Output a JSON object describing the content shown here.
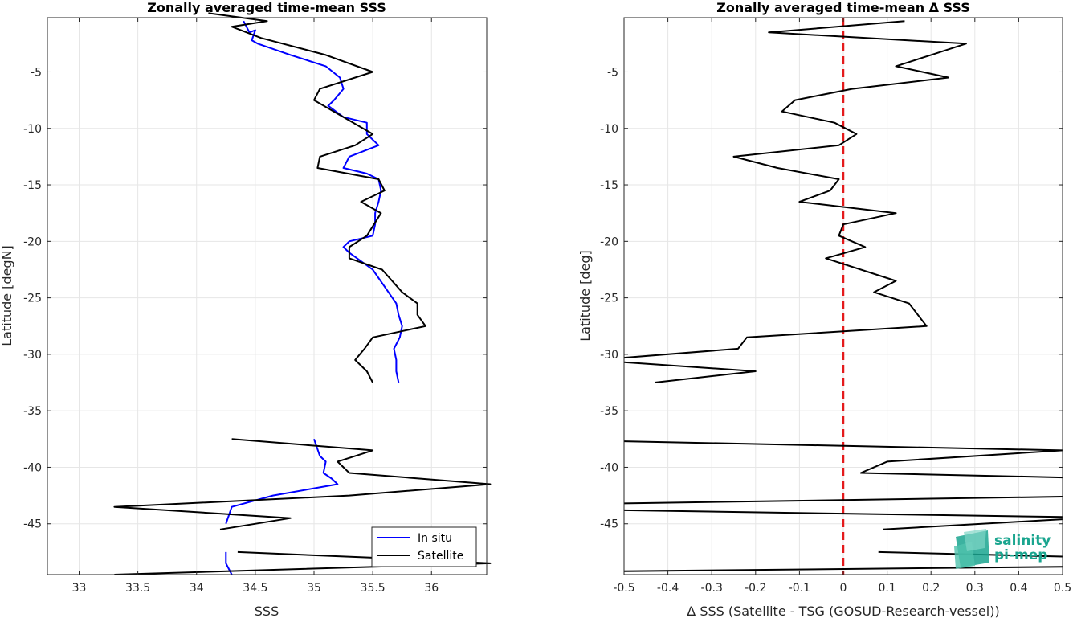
{
  "chart_data": [
    {
      "type": "line",
      "title": "Zonally averaged time-mean SSS",
      "xlabel": "SSS",
      "ylabel": "Latitude [degN]",
      "xlim": [
        32.73,
        36.47
      ],
      "ylim": [
        -49.5,
        -0.2
      ],
      "xticks": [
        33,
        33.5,
        34,
        34.5,
        35,
        35.5,
        36
      ],
      "xtick_labels": [
        "33",
        "33.5",
        "34",
        "34.5",
        "35",
        "35.5",
        "36"
      ],
      "yticks": [
        -5,
        -10,
        -15,
        -20,
        -25,
        -30,
        -35,
        -40,
        -45
      ],
      "ytick_labels": [
        "-5",
        "-10",
        "-15",
        "-20",
        "-25",
        "-30",
        "-35",
        "-40",
        "-45"
      ],
      "grid": true,
      "legend_position": "bottom-right",
      "series": [
        {
          "name": "In situ",
          "color": "#0000ff",
          "segments": [
            [
              [
                34.4,
                -0.5
              ],
              [
                34.45,
                -1.5
              ],
              [
                34.5,
                -1.3
              ],
              [
                34.47,
                -2.2
              ],
              [
                34.52,
                -2.5
              ],
              [
                34.8,
                -3.5
              ],
              [
                35.1,
                -4.5
              ],
              [
                35.22,
                -5.5
              ],
              [
                35.25,
                -6.5
              ],
              [
                35.17,
                -7.5
              ],
              [
                35.12,
                -8
              ],
              [
                35.25,
                -9
              ],
              [
                35.45,
                -9.5
              ],
              [
                35.45,
                -10.5
              ],
              [
                35.55,
                -11.5
              ],
              [
                35.3,
                -12.5
              ],
              [
                35.25,
                -13.5
              ],
              [
                35.45,
                -14
              ],
              [
                35.55,
                -14.5
              ],
              [
                35.57,
                -15.5
              ],
              [
                35.55,
                -16.5
              ],
              [
                35.52,
                -17.5
              ],
              [
                35.52,
                -18.5
              ],
              [
                35.5,
                -19.5
              ],
              [
                35.3,
                -20
              ],
              [
                35.25,
                -20.5
              ],
              [
                35.3,
                -21
              ],
              [
                35.5,
                -22.5
              ],
              [
                35.6,
                -24
              ],
              [
                35.7,
                -25.5
              ],
              [
                35.72,
                -26.5
              ],
              [
                35.75,
                -27.5
              ],
              [
                35.73,
                -28.5
              ],
              [
                35.68,
                -29.5
              ],
              [
                35.7,
                -30.5
              ],
              [
                35.7,
                -31.5
              ],
              [
                35.72,
                -32.5
              ]
            ],
            [
              [
                35.0,
                -37.5
              ],
              [
                35.05,
                -39
              ],
              [
                35.1,
                -39.5
              ],
              [
                35.08,
                -40.5
              ],
              [
                35.15,
                -41
              ],
              [
                35.2,
                -41.5
              ],
              [
                34.65,
                -42.5
              ],
              [
                34.3,
                -43.5
              ],
              [
                34.25,
                -45
              ]
            ],
            [
              [
                34.25,
                -47.5
              ],
              [
                34.25,
                -48.5
              ],
              [
                34.3,
                -49.5
              ]
            ]
          ]
        },
        {
          "name": "Satellite",
          "color": "#000000",
          "segments": [
            [
              [
                34.1,
                0.2
              ],
              [
                34.6,
                -0.5
              ],
              [
                34.3,
                -1
              ],
              [
                34.55,
                -2
              ],
              [
                35.1,
                -3.5
              ],
              [
                35.5,
                -5
              ],
              [
                35.05,
                -6.5
              ],
              [
                35.0,
                -7.5
              ],
              [
                35.5,
                -10.5
              ],
              [
                35.35,
                -11.5
              ],
              [
                35.05,
                -12.5
              ],
              [
                35.03,
                -13.5
              ],
              [
                35.55,
                -14.5
              ],
              [
                35.6,
                -15.5
              ],
              [
                35.4,
                -16.5
              ],
              [
                35.57,
                -17.5
              ],
              [
                35.45,
                -19.5
              ],
              [
                35.3,
                -20.5
              ],
              [
                35.3,
                -21.5
              ],
              [
                35.58,
                -22.5
              ],
              [
                35.75,
                -24.5
              ],
              [
                35.88,
                -25.5
              ],
              [
                35.88,
                -26.5
              ],
              [
                35.95,
                -27.5
              ],
              [
                35.5,
                -28.5
              ],
              [
                35.43,
                -29.5
              ],
              [
                35.35,
                -30.5
              ],
              [
                35.45,
                -31.5
              ],
              [
                35.5,
                -32.5
              ]
            ],
            [
              [
                34.3,
                -37.5
              ],
              [
                35.5,
                -38.5
              ],
              [
                35.2,
                -39.5
              ],
              [
                35.3,
                -40.5
              ],
              [
                36.5,
                -41.5
              ],
              [
                35.3,
                -42.5
              ],
              [
                33.3,
                -43.5
              ],
              [
                34.8,
                -44.5
              ],
              [
                34.2,
                -45.5
              ]
            ],
            [
              [
                34.35,
                -47.5
              ],
              [
                35.5,
                -48
              ],
              [
                36.5,
                -48.5
              ],
              [
                33.3,
                -49.5
              ]
            ]
          ]
        }
      ]
    },
    {
      "type": "line",
      "title": "Zonally averaged time-mean Δ SSS",
      "xlabel": "Δ SSS (Satellite - TSG (GOSUD-Research-vessel))",
      "ylabel": "Latitude [deg]",
      "xlim": [
        -0.5,
        0.5
      ],
      "ylim": [
        -49.5,
        -0.2
      ],
      "xticks": [
        -0.5,
        -0.4,
        -0.3,
        -0.2,
        -0.1,
        0,
        0.1,
        0.2,
        0.3,
        0.4,
        0.5
      ],
      "xtick_labels": [
        "-0.5",
        "-0.4",
        "-0.3",
        "-0.2",
        "-0.1",
        "0",
        "0.1",
        "0.2",
        "0.3",
        "0.4",
        "0.5"
      ],
      "yticks": [
        -5,
        -10,
        -15,
        -20,
        -25,
        -30,
        -35,
        -40,
        -45
      ],
      "ytick_labels": [
        "-5",
        "-10",
        "-15",
        "-20",
        "-25",
        "-30",
        "-35",
        "-40",
        "-45"
      ],
      "grid": true,
      "zero_line": {
        "value": 0,
        "color": "#e41a1c",
        "style": "dashed"
      },
      "series": [
        {
          "name": "",
          "color": "#000000",
          "segments": [
            [
              [
                0.14,
                -0.5
              ],
              [
                -0.17,
                -1.5
              ],
              [
                0.28,
                -2.5
              ],
              [
                0.2,
                -3.5
              ],
              [
                0.12,
                -4.5
              ],
              [
                0.24,
                -5.5
              ],
              [
                0.02,
                -6.5
              ],
              [
                -0.11,
                -7.5
              ],
              [
                -0.14,
                -8.5
              ],
              [
                -0.02,
                -9.5
              ],
              [
                0.03,
                -10.5
              ],
              [
                -0.01,
                -11.5
              ],
              [
                -0.25,
                -12.5
              ],
              [
                -0.15,
                -13.5
              ],
              [
                -0.01,
                -14.5
              ],
              [
                -0.03,
                -15.5
              ],
              [
                -0.1,
                -16.5
              ],
              [
                0.12,
                -17.5
              ],
              [
                0.0,
                -18.5
              ],
              [
                -0.01,
                -19.5
              ],
              [
                0.05,
                -20.5
              ],
              [
                -0.04,
                -21.5
              ],
              [
                0.12,
                -23.5
              ],
              [
                0.07,
                -24.5
              ],
              [
                0.15,
                -25.5
              ],
              [
                0.19,
                -27.5
              ],
              [
                -0.22,
                -28.5
              ],
              [
                -0.24,
                -29.5
              ],
              [
                -0.5,
                -30.3
              ]
            ],
            [
              [
                -0.5,
                -30.7
              ],
              [
                -0.2,
                -31.5
              ],
              [
                -0.43,
                -32.5
              ]
            ],
            [
              [
                -0.5,
                -37.7
              ],
              [
                0.5,
                -38.5
              ],
              [
                0.1,
                -39.5
              ],
              [
                0.04,
                -40.5
              ],
              [
                0.5,
                -40.9
              ]
            ],
            [
              [
                -0.5,
                -43.2
              ],
              [
                0.5,
                -42.6
              ]
            ],
            [
              [
                -0.5,
                -43.8
              ],
              [
                0.5,
                -44.4
              ]
            ],
            [
              [
                0.5,
                -44.6
              ],
              [
                0.09,
                -45.5
              ]
            ],
            [
              [
                0.08,
                -47.5
              ],
              [
                0.5,
                -47.9
              ]
            ],
            [
              [
                0.5,
                -48.8
              ],
              [
                -0.5,
                -49.2
              ]
            ]
          ]
        }
      ]
    }
  ],
  "legend": {
    "items": [
      {
        "label": "In situ",
        "color": "#0000ff"
      },
      {
        "label": "Satellite",
        "color": "#000000"
      }
    ]
  },
  "logo": {
    "line1": "salinity",
    "line2": "pi-mep"
  }
}
